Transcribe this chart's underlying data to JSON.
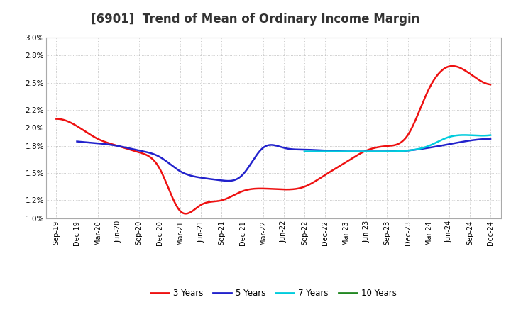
{
  "title": "[6901]  Trend of Mean of Ordinary Income Margin",
  "title_fontsize": 12,
  "background_color": "#ffffff",
  "plot_bg_color": "#ffffff",
  "grid_color": "#bbbbbb",
  "ylim": [
    0.01,
    0.03
  ],
  "x_labels": [
    "Sep-19",
    "Dec-19",
    "Mar-20",
    "Jun-20",
    "Sep-20",
    "Dec-20",
    "Mar-21",
    "Jun-21",
    "Sep-21",
    "Dec-21",
    "Mar-22",
    "Jun-22",
    "Sep-22",
    "Dec-22",
    "Mar-23",
    "Jun-23",
    "Sep-23",
    "Dec-23",
    "Mar-24",
    "Jun-24",
    "Sep-24",
    "Dec-24"
  ],
  "series": {
    "3 Years": {
      "color": "#ee1111",
      "linewidth": 1.8,
      "values": [
        0.021,
        0.0202,
        0.0188,
        0.018,
        0.0173,
        0.0155,
        0.0108,
        0.0115,
        0.012,
        0.013,
        0.0133,
        0.0132,
        0.0135,
        0.0148,
        0.0162,
        0.0175,
        0.018,
        0.0192,
        0.0242,
        0.0268,
        0.026,
        0.0248
      ]
    },
    "5 Years": {
      "color": "#2222cc",
      "linewidth": 1.8,
      "values": [
        null,
        0.0185,
        0.0183,
        0.018,
        0.0175,
        0.0168,
        0.0152,
        0.0145,
        0.0142,
        0.0148,
        0.0178,
        0.0178,
        0.0176,
        0.0175,
        0.0174,
        0.0174,
        0.0174,
        0.0175,
        0.0178,
        0.0182,
        0.0186,
        0.0188
      ]
    },
    "7 Years": {
      "color": "#00ccdd",
      "linewidth": 1.8,
      "values": [
        null,
        null,
        null,
        null,
        null,
        null,
        null,
        null,
        null,
        null,
        null,
        null,
        0.0174,
        0.0174,
        0.0174,
        0.0174,
        0.0174,
        0.0175,
        0.018,
        0.019,
        0.0192,
        0.0192
      ]
    },
    "10 Years": {
      "color": "#228822",
      "linewidth": 1.8,
      "values": [
        null,
        null,
        null,
        null,
        null,
        null,
        null,
        null,
        null,
        null,
        null,
        null,
        null,
        null,
        null,
        null,
        null,
        null,
        null,
        null,
        null,
        null
      ]
    }
  },
  "legend_labels": [
    "3 Years",
    "5 Years",
    "7 Years",
    "10 Years"
  ],
  "legend_colors": [
    "#ee1111",
    "#2222cc",
    "#00ccdd",
    "#228822"
  ]
}
